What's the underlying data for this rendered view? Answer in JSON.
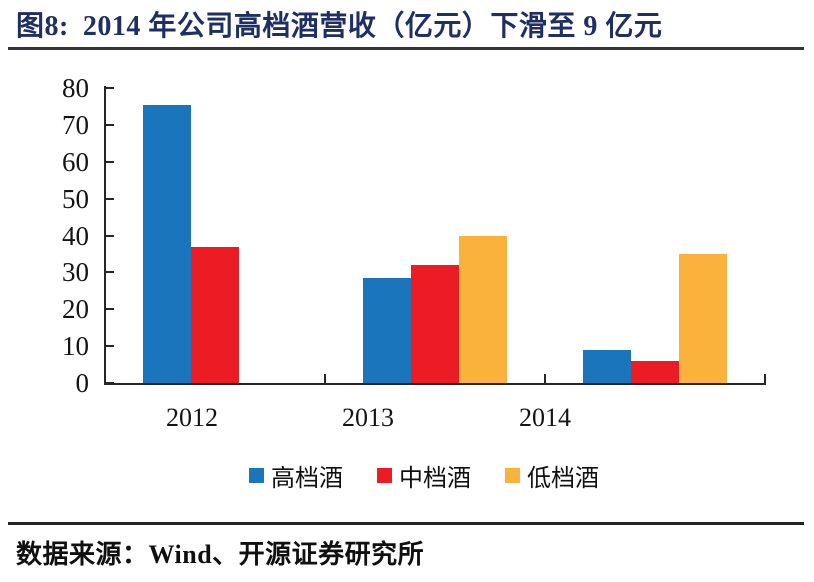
{
  "header": {
    "figure_label": "图8:",
    "title": "2014 年公司高档酒营收（亿元）下滑至 9 亿元"
  },
  "footer": {
    "source_label": "数据来源：Wind、开源证券研究所"
  },
  "colors": {
    "title_navy": "#1F2E63",
    "axis_black": "#262626",
    "series_blue": "#1B75BC",
    "series_red": "#EC1C24",
    "series_yellow": "#FBB23C"
  },
  "chart_data": {
    "type": "bar",
    "title": "2014 年公司高档酒营收（亿元）下滑至 9 亿元",
    "figure_number": "图8",
    "categories": [
      "2012",
      "2013",
      "2014"
    ],
    "series": [
      {
        "name": "高档酒",
        "color": "#1B75BC",
        "values": [
          75.5,
          28.5,
          9
        ]
      },
      {
        "name": "中档酒",
        "color": "#EC1C24",
        "values": [
          37,
          32,
          6
        ]
      },
      {
        "name": "低档酒",
        "color": "#FBB23C",
        "values": [
          0,
          40,
          35
        ]
      }
    ],
    "xlabel": "",
    "ylabel": "",
    "ylim": [
      0,
      80
    ],
    "yticks": [
      0,
      10,
      20,
      30,
      40,
      50,
      60,
      70,
      80
    ],
    "grid": false,
    "legend_position": "bottom",
    "source": "数据来源：Wind、开源证券研究所"
  }
}
